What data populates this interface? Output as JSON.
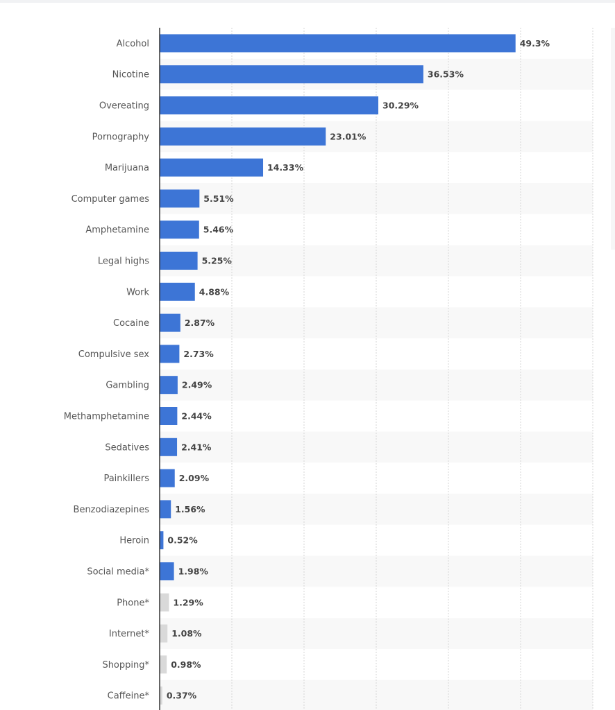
{
  "chart_data": {
    "type": "bar",
    "orientation": "horizontal",
    "title": "",
    "xlabel": "",
    "ylabel": "",
    "xlim": [
      0,
      60
    ],
    "grid": true,
    "value_suffix": "%",
    "categories": [
      "Alcohol",
      "Nicotine",
      "Overeating",
      "Pornography",
      "Marijuana",
      "Computer games",
      "Amphetamine",
      "Legal highs",
      "Work",
      "Cocaine",
      "Compulsive sex",
      "Gambling",
      "Methamphetamine",
      "Sedatives",
      "Painkillers",
      "Benzodiazepines",
      "Heroin",
      "Social media*",
      "Phone*",
      "Internet*",
      "Shopping*",
      "Caffeine*"
    ],
    "values": [
      49.3,
      36.53,
      30.29,
      23.01,
      14.33,
      5.51,
      5.46,
      5.25,
      4.88,
      2.87,
      2.73,
      2.49,
      2.44,
      2.41,
      2.09,
      1.56,
      0.52,
      1.98,
      1.29,
      1.08,
      0.98,
      0.37
    ],
    "value_labels": [
      "49.3%",
      "36.53%",
      "30.29%",
      "23.01%",
      "14.33%",
      "5.51%",
      "5.46%",
      "5.25%",
      "4.88%",
      "2.87%",
      "2.73%",
      "2.49%",
      "2.44%",
      "2.41%",
      "2.09%",
      "1.56%",
      "0.52%",
      "1.98%",
      "1.29%",
      "1.08%",
      "0.98%",
      "0.37%"
    ],
    "highlighted": [
      true,
      true,
      true,
      true,
      true,
      true,
      true,
      true,
      true,
      true,
      true,
      true,
      true,
      true,
      true,
      true,
      true,
      true,
      false,
      false,
      false,
      false
    ],
    "colors": {
      "primary": "#3d75d6",
      "secondary": "#d9d9d9",
      "band": "#f8f8f8",
      "grid": "#d6d6d6",
      "axis": "#333333"
    }
  }
}
